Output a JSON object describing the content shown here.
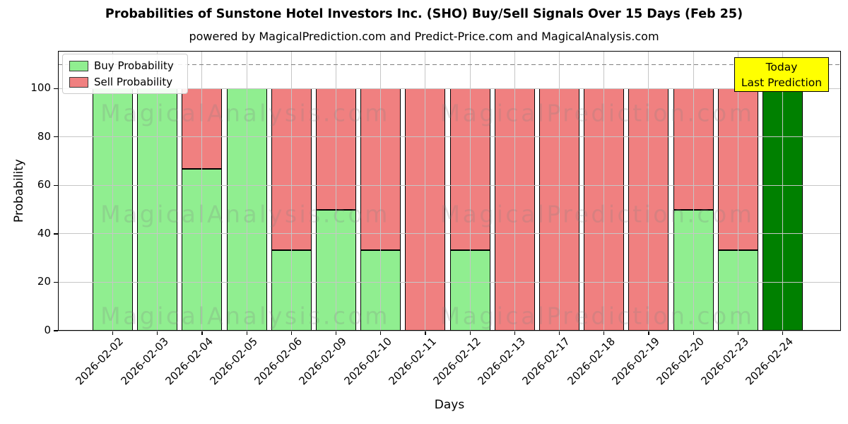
{
  "title": "Probabilities of Sunstone Hotel Investors Inc. (SHO) Buy/Sell Signals Over 15 Days (Feb 25)",
  "subtitle": "powered by MagicalPrediction.com and Predict-Price.com and MagicalAnalysis.com",
  "legend": {
    "items": [
      {
        "label": "Buy Probability",
        "color": "#90ee90"
      },
      {
        "label": "Sell Probability",
        "color": "#f08080"
      }
    ]
  },
  "annotation": {
    "line1": "Today",
    "line2": "Last Prediction",
    "bg_color": "#ffff00"
  },
  "watermarks": {
    "left_text": "MagicalAnalysis.com",
    "right_text": "MagicalPrediction.com"
  },
  "colors": {
    "buy": "#90ee90",
    "sell": "#f08080",
    "today_buy": "#008000",
    "bar_edge": "#000000",
    "grid": "#c6c6c6",
    "threshold": "#7f7f7f"
  },
  "chart_data": {
    "type": "bar",
    "stacked": true,
    "title": "Probabilities of Sunstone Hotel Investors Inc. (SHO) Buy/Sell Signals Over 15 Days (Feb 25)",
    "xlabel": "Days",
    "ylabel": "Probability",
    "ylim": [
      0,
      115.5
    ],
    "y_ticks": [
      0,
      20,
      40,
      60,
      80,
      100
    ],
    "threshold_y": 110,
    "grid": true,
    "legend_position": "upper left",
    "categories": [
      "2026-02-02",
      "2026-02-03",
      "2026-02-04",
      "2026-02-05",
      "2026-02-06",
      "2026-02-09",
      "2026-02-10",
      "2026-02-11",
      "2026-02-12",
      "2026-02-13",
      "2026-02-17",
      "2026-02-18",
      "2026-02-19",
      "2026-02-20",
      "2026-02-23",
      "2026-02-24"
    ],
    "series": [
      {
        "name": "Buy Probability",
        "color": "#90ee90",
        "values": [
          100,
          100,
          66.67,
          100,
          33.33,
          50,
          33.33,
          0,
          33.33,
          0,
          0,
          0,
          0,
          50,
          33.33,
          100
        ]
      },
      {
        "name": "Sell Probability",
        "color": "#f08080",
        "values": [
          0,
          0,
          33.33,
          0,
          66.67,
          50,
          66.67,
          100,
          66.67,
          100,
          100,
          100,
          100,
          50,
          66.67,
          0
        ]
      }
    ],
    "today_index": 15
  }
}
